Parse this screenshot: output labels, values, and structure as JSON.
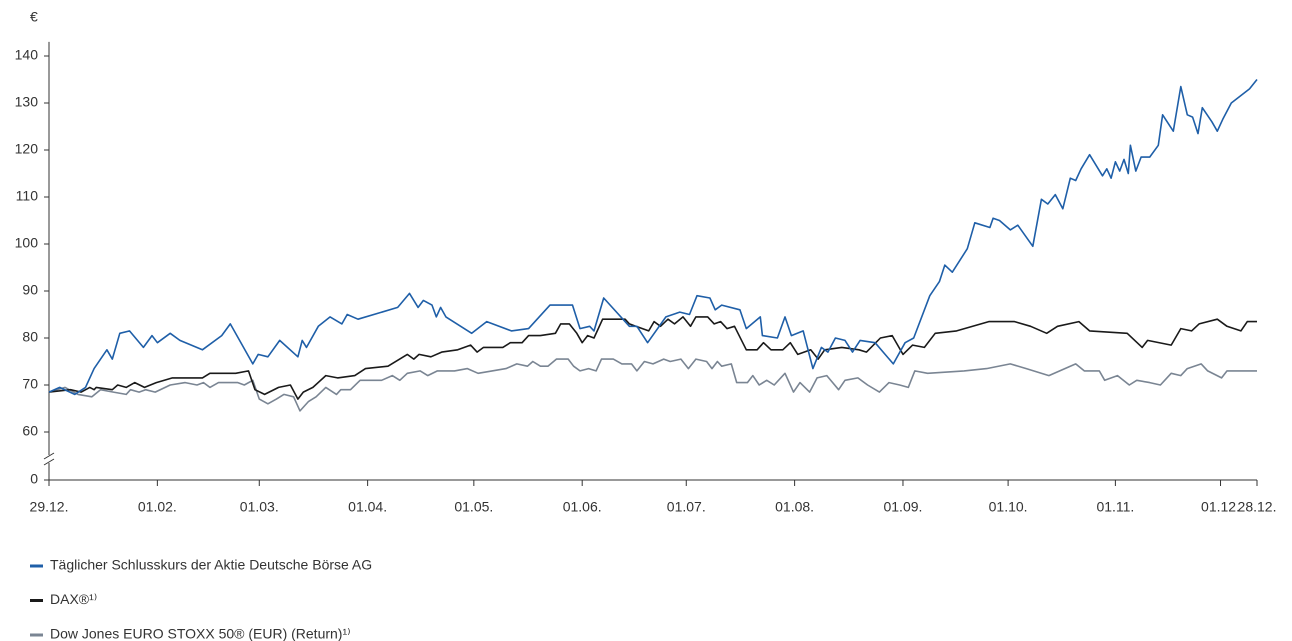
{
  "chart_data": {
    "type": "line",
    "y_unit": "€",
    "xlim": [
      0,
      112.6
    ],
    "xticks": [
      {
        "value": 0,
        "label": "29.12."
      },
      {
        "value": 10.1,
        "label": "01.02."
      },
      {
        "value": 19.6,
        "label": "01.03."
      },
      {
        "value": 29.7,
        "label": "01.04."
      },
      {
        "value": 39.6,
        "label": "01.05."
      },
      {
        "value": 49.7,
        "label": "01.06."
      },
      {
        "value": 59.4,
        "label": "01.07."
      },
      {
        "value": 69.5,
        "label": "01.08."
      },
      {
        "value": 79.6,
        "label": "01.09."
      },
      {
        "value": 89.4,
        "label": "01.10."
      },
      {
        "value": 99.4,
        "label": "01.11."
      },
      {
        "value": 109.2,
        "label": "01.12."
      },
      {
        "value": 112.6,
        "label": "28.12."
      }
    ],
    "ylim": [
      0,
      143
    ],
    "yticks": [
      0,
      60,
      70,
      80,
      90,
      100,
      110,
      120,
      130,
      140
    ],
    "y_break": [
      0,
      60
    ],
    "series": [
      {
        "name": "Täglicher Schlusskurs der Aktie Deutsche Börse AG",
        "color": "#1f5fa8",
        "x": [
          0,
          1.0,
          2.4,
          3.4,
          4.2,
          5.4,
          5.9,
          6.6,
          7.5,
          8.8,
          9.6,
          10.1,
          11.3,
          12.2,
          14.3,
          16.1,
          16.9,
          19.0,
          19.5,
          20.4,
          21.5,
          23.2,
          23.6,
          24.0,
          25.1,
          26.2,
          27.3,
          27.8,
          28.8,
          32.5,
          33.6,
          34.4,
          34.9,
          35.7,
          36.1,
          36.5,
          37.0,
          39.4,
          40.8,
          43.1,
          44.7,
          46.7,
          48.8,
          49.5,
          50.4,
          50.8,
          51.7,
          54.1,
          54.8,
          55.8,
          57.5,
          58.8,
          59.7,
          60.4,
          61.6,
          62.1,
          62.7,
          64.4,
          65.0,
          66.3,
          66.5,
          67.9,
          68.6,
          69.2,
          70.3,
          71.2,
          72.0,
          72.6,
          73.3,
          74.2,
          74.9,
          75.6,
          77.0,
          78.7,
          79.8,
          80.6,
          82.1,
          83.0,
          83.5,
          84.2,
          85.6,
          86.3,
          87.7,
          88.0,
          88.6,
          89.6,
          90.3,
          91.7,
          92.5,
          93.1,
          93.8,
          94.5,
          95.2,
          95.7,
          96.2,
          97.0,
          98.2,
          98.6,
          99.0,
          99.4,
          99.8,
          100.2,
          100.6,
          100.8,
          101.3,
          101.8,
          102.6,
          103.4,
          103.8,
          104.8,
          105.5,
          106.1,
          106.6,
          107.1,
          107.5,
          108.4,
          108.9,
          109.4,
          110.2,
          111.9,
          112.6
        ],
        "values": [
          68.5,
          69.5,
          68,
          69.5,
          73.5,
          77.5,
          75.5,
          81,
          81.5,
          78,
          80.5,
          79,
          81,
          79.5,
          77.5,
          80.5,
          83,
          74.5,
          76.5,
          76,
          79.5,
          76,
          79.5,
          78,
          82.5,
          84.5,
          83,
          85,
          84,
          86.5,
          89.5,
          86.5,
          88,
          87,
          84.5,
          86.5,
          84.5,
          81,
          83.5,
          81.5,
          82,
          87,
          87,
          82,
          82.5,
          81.5,
          88.5,
          82.5,
          82.5,
          79,
          84.5,
          85.5,
          85,
          89,
          88.5,
          86,
          87,
          86,
          82,
          84.5,
          80.5,
          80,
          84.5,
          80.5,
          81.5,
          73.5,
          78,
          77,
          80,
          79.5,
          77,
          79.5,
          79,
          74.5,
          79,
          80,
          89,
          92,
          95.5,
          94,
          99,
          104.5,
          103.5,
          105.5,
          105,
          103,
          104,
          99.5,
          109.5,
          108.5,
          110.5,
          107.5,
          114,
          113.5,
          116,
          119,
          114.5,
          116,
          114,
          117.5,
          115.5,
          118,
          115,
          121,
          115.5,
          118.5,
          118.5,
          121,
          127.5,
          124,
          133.5,
          127.5,
          127,
          123.5,
          129,
          126,
          124,
          126.5,
          130,
          133,
          135
        ]
      },
      {
        "name": "DAX®¹⁾",
        "color": "#1a1a1a",
        "x": [
          0,
          2.0,
          3.0,
          3.8,
          4.2,
          4.4,
          5.9,
          6.4,
          7.2,
          8.0,
          8.9,
          10.0,
          11.5,
          14.3,
          15.0,
          17.4,
          18.6,
          19.2,
          20.1,
          21.4,
          22.5,
          23.2,
          23.7,
          24.6,
          25.8,
          26.9,
          28.5,
          29.5,
          31.6,
          33.4,
          34.0,
          34.5,
          35.6,
          36.6,
          38.1,
          39.3,
          39.9,
          40.5,
          42.3,
          43.0,
          44.1,
          44.7,
          45.8,
          47.2,
          47.7,
          48.5,
          49.2,
          49.7,
          50.2,
          50.8,
          51.6,
          53.7,
          54.1,
          54.7,
          55.9,
          56.4,
          57.0,
          57.7,
          58.3,
          59.1,
          59.8,
          60.3,
          61.4,
          62.0,
          62.6,
          63.2,
          63.9,
          65.0,
          66.0,
          66.6,
          67.3,
          68.4,
          69.1,
          69.8,
          71.0,
          71.7,
          72.3,
          73.9,
          75.5,
          76.2,
          77.5,
          78.6,
          79.6,
          80.5,
          81.6,
          82.6,
          84.6,
          87.6,
          90.0,
          91.5,
          93.0,
          94.0,
          96.0,
          97.0,
          100.5,
          101.9,
          102.4,
          104.6,
          105.5,
          106.5,
          107.2,
          108.9,
          109.8,
          111.1,
          111.7,
          112.6
        ],
        "values": [
          68.5,
          69,
          68.5,
          69.5,
          69,
          69.5,
          69,
          70,
          69.5,
          70.5,
          69.5,
          70.5,
          71.5,
          71.5,
          72.5,
          72.5,
          73,
          69,
          68,
          69.5,
          70,
          67,
          68.5,
          69.5,
          72,
          71.5,
          72,
          73.5,
          74,
          76.5,
          75.5,
          76.5,
          76,
          77,
          77.5,
          78.5,
          77,
          78,
          78,
          79,
          79,
          80.5,
          80.5,
          81,
          83,
          83,
          81,
          79,
          80.5,
          80,
          84,
          84,
          83,
          82.5,
          81.5,
          83.5,
          82.5,
          84,
          83,
          84.5,
          82.5,
          84.5,
          84.5,
          83,
          83.5,
          82,
          82.5,
          77.5,
          77.5,
          79,
          77.5,
          77.5,
          79,
          76.5,
          77.5,
          75.5,
          77.5,
          78,
          77.5,
          77,
          80,
          80.5,
          76.5,
          78.5,
          78,
          81,
          81.5,
          83.5,
          83.5,
          82.5,
          81,
          82.5,
          83.5,
          81.5,
          81,
          78,
          79.5,
          78.5,
          82,
          81.5,
          83,
          84,
          82.5,
          81.5,
          83.5,
          83.5
        ]
      },
      {
        "name": "Dow Jones EURO STOXX 50® (EUR) (Return)¹⁾",
        "color": "#7a8593",
        "x": [
          0,
          1.5,
          2.7,
          4.0,
          4.8,
          6.0,
          7.2,
          7.6,
          8.4,
          9.0,
          9.9,
          11.3,
          12.7,
          13.8,
          14.4,
          15.0,
          15.8,
          17.6,
          18.2,
          19.0,
          19.6,
          20.4,
          21.2,
          21.9,
          22.8,
          23.4,
          24.2,
          24.9,
          25.8,
          26.8,
          27.2,
          28.1,
          29.0,
          31.0,
          32.0,
          32.7,
          33.4,
          34.6,
          35.3,
          36.2,
          37.8,
          39.0,
          40.0,
          41.3,
          42.6,
          43.6,
          44.6,
          45.1,
          45.8,
          46.5,
          47.3,
          48.4,
          48.9,
          49.5,
          50.3,
          51.0,
          51.5,
          52.6,
          53.4,
          54.3,
          54.8,
          55.5,
          56.3,
          57.3,
          57.9,
          58.9,
          59.6,
          60.3,
          61.3,
          61.8,
          62.3,
          62.7,
          63.6,
          64.1,
          65.1,
          65.6,
          66.2,
          66.9,
          67.6,
          68.6,
          69.4,
          70.0,
          70.9,
          71.6,
          72.5,
          73.6,
          74.2,
          75.4,
          76.3,
          77.4,
          78.3,
          79.3,
          80.1,
          80.7,
          81.9,
          85.3,
          87.4,
          89.6,
          91.1,
          93.2,
          95.7,
          96.5,
          97.9,
          98.4,
          99.6,
          100.7,
          101.4,
          102.6,
          103.6,
          104.6,
          105.5,
          106.1,
          107.4,
          108.0,
          109.3,
          109.8,
          111.2,
          112.6
        ],
        "values": [
          68.5,
          69.5,
          68,
          67.5,
          69,
          68.5,
          68,
          69,
          68.5,
          69,
          68.5,
          70,
          70.5,
          70,
          70.5,
          69.5,
          70.5,
          70.5,
          70,
          71,
          67,
          66,
          67,
          68,
          67.5,
          64.5,
          66.5,
          67.5,
          69.5,
          68,
          69,
          69,
          71,
          71,
          72,
          71,
          72.5,
          73,
          72,
          73,
          73,
          73.5,
          72.5,
          73,
          73.5,
          74.5,
          74,
          75,
          74,
          74,
          75.5,
          75.5,
          74,
          73,
          73.5,
          73,
          75.5,
          75.5,
          74.5,
          74.5,
          73,
          75,
          74.5,
          75.5,
          75,
          75.5,
          73.5,
          75.5,
          75,
          73.5,
          75,
          74,
          74.5,
          70.5,
          70.5,
          72,
          70,
          71,
          70,
          72.5,
          68.5,
          70.5,
          68.5,
          71.5,
          72,
          69,
          71,
          71.5,
          70,
          68.5,
          70.5,
          70,
          69.5,
          73,
          72.5,
          73,
          73.5,
          74.5,
          73.5,
          72,
          74.5,
          73,
          73,
          71,
          72,
          70,
          71,
          70.5,
          70,
          72.5,
          72,
          73.5,
          74.5,
          73,
          71.5,
          73,
          73,
          73
        ]
      }
    ]
  }
}
